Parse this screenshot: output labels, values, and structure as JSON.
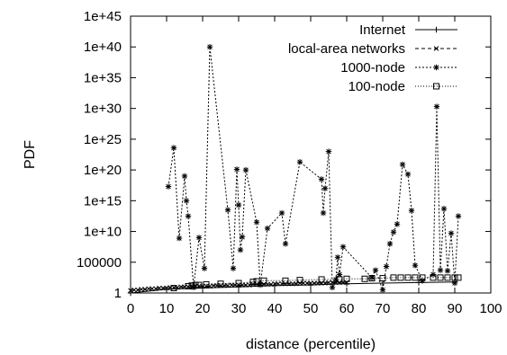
{
  "chart_data": {
    "type": "line",
    "title": "",
    "xlabel": "distance (percentile)",
    "ylabel": "PDF",
    "xlim": [
      0,
      100
    ],
    "ylim_log10": [
      0,
      45
    ],
    "yscale": "log",
    "grid": false,
    "legend_position": "top-right",
    "x_ticks": [
      "0",
      "10",
      "20",
      "30",
      "40",
      "50",
      "60",
      "70",
      "80",
      "90",
      "100"
    ],
    "y_ticks": [
      "1",
      "100000",
      "1e+10",
      "1e+15",
      "1e+20",
      "1e+25",
      "1e+30",
      "1e+35",
      "1e+40",
      "1e+45"
    ],
    "series": [
      {
        "name": "Internet",
        "marker": "plus",
        "dash": "",
        "x": [
          0,
          10,
          20,
          30,
          40,
          50,
          60,
          70,
          80,
          90
        ],
        "y_log10": [
          0.0,
          0.6,
          0.8,
          1.0,
          1.2,
          1.3,
          1.5,
          1.6,
          1.7,
          1.8
        ]
      },
      {
        "name": "local-area networks",
        "marker": "x",
        "dash": "4,3",
        "x": [
          0,
          1,
          2,
          3,
          4,
          5,
          6,
          7,
          8,
          9,
          10,
          11,
          12,
          13,
          14,
          15,
          16,
          17,
          18,
          19,
          20,
          21,
          22,
          23,
          24,
          25,
          26,
          27,
          28,
          29,
          30,
          31,
          32,
          33,
          34,
          35,
          36,
          37,
          38,
          39,
          40,
          41,
          42,
          43,
          44,
          45,
          46,
          47,
          48,
          49,
          50,
          51,
          52,
          53,
          54,
          55,
          56,
          57,
          58,
          59,
          60
        ],
        "y_log10": [
          0.4,
          0.5,
          0.5,
          0.6,
          0.6,
          0.7,
          0.7,
          0.7,
          0.8,
          0.8,
          0.8,
          0.9,
          0.9,
          0.9,
          1.0,
          1.0,
          1.0,
          1.0,
          1.1,
          1.1,
          1.1,
          1.1,
          1.1,
          1.2,
          1.2,
          1.2,
          1.2,
          1.2,
          1.3,
          1.3,
          1.3,
          1.3,
          1.3,
          1.3,
          1.4,
          1.4,
          1.4,
          1.4,
          1.4,
          1.4,
          1.5,
          1.5,
          1.5,
          1.5,
          1.5,
          1.5,
          1.5,
          1.6,
          1.6,
          1.6,
          1.6,
          1.6,
          1.6,
          1.6,
          1.6,
          1.7,
          1.7,
          1.7,
          1.7,
          1.7,
          1.7
        ]
      },
      {
        "name": "1000-node",
        "marker": "star",
        "dash": "2,2",
        "x": [
          10.5,
          12,
          13.5,
          15,
          15.5,
          16,
          17.5,
          19,
          20.5,
          22,
          27,
          28.5,
          29.5,
          30,
          30.5,
          31,
          32,
          35,
          36,
          38,
          42,
          43,
          47,
          53,
          53.5,
          54,
          55,
          56,
          57,
          57.5,
          58,
          59,
          67,
          68,
          70,
          71,
          72,
          73,
          74,
          75.5,
          77,
          78,
          79,
          81,
          84,
          85,
          86,
          87,
          88,
          89,
          90,
          91
        ],
        "y_log10": [
          17.3,
          23.6,
          8.9,
          19.0,
          15.0,
          12.5,
          0.9,
          9.0,
          4.0,
          40.0,
          13.5,
          4.0,
          20.1,
          14.3,
          7.0,
          9.1,
          20.0,
          11.5,
          1.3,
          10.5,
          13.0,
          8.0,
          21.3,
          18.5,
          13.0,
          17.0,
          23.0,
          0.9,
          2.2,
          5.8,
          3.0,
          7.5,
          2.5,
          3.7,
          0.5,
          4.3,
          8.0,
          9.9,
          11.2,
          20.9,
          19.3,
          13.4,
          4.5,
          2.0,
          3.0,
          30.3,
          3.7,
          13.7,
          3.6,
          9.7,
          1.6,
          12.5
        ]
      },
      {
        "name": "100-node",
        "marker": "square",
        "dash": "1,2",
        "x": [
          12,
          16,
          17,
          18,
          19,
          21,
          25,
          30,
          34,
          35,
          37,
          43,
          47,
          53,
          58,
          60,
          65,
          67,
          70,
          73,
          75,
          77,
          79,
          81,
          84,
          86,
          88,
          90,
          91
        ],
        "y_log10": [
          0.8,
          1.1,
          1.2,
          1.3,
          1.3,
          1.4,
          1.5,
          1.6,
          1.8,
          1.9,
          2.0,
          2.0,
          2.1,
          2.2,
          2.2,
          2.3,
          2.3,
          2.4,
          2.4,
          2.5,
          2.5,
          2.5,
          2.5,
          2.5,
          2.5,
          2.5,
          2.5,
          2.5,
          2.5
        ]
      }
    ]
  }
}
